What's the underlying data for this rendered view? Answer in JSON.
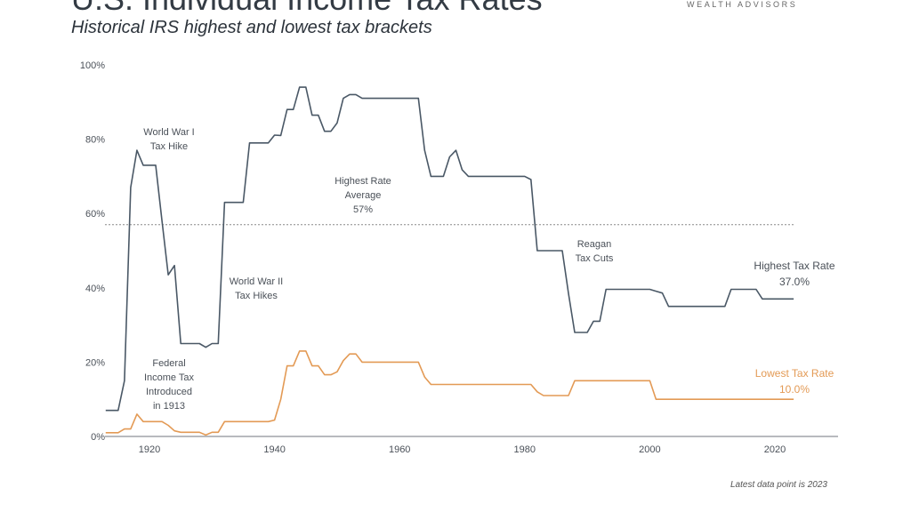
{
  "header": {
    "title": "U.S. Individual Income Tax Rates",
    "subtitle": "Historical IRS highest and lowest tax brackets",
    "logo_text": "WEALTH ADVISORS"
  },
  "footnote": "Latest data point is 2023",
  "colors": {
    "highest": "#4a5866",
    "lowest": "#e39a55",
    "axis": "#a0a4a8",
    "text": "#4a5058"
  },
  "chart_data": {
    "type": "line",
    "title": "U.S. Individual Income Tax Rates",
    "subtitle": "Historical IRS highest and lowest tax brackets",
    "xlabel": "",
    "ylabel": "",
    "xlim": [
      1913,
      2030
    ],
    "ylim": [
      0,
      100
    ],
    "x_ticks": [
      "1920",
      "1940",
      "1960",
      "1980",
      "2000",
      "2020"
    ],
    "y_ticks": [
      "0%",
      "20%",
      "40%",
      "60%",
      "80%",
      "100%"
    ],
    "grid": false,
    "series": [
      {
        "name": "Highest Tax Rate",
        "color": "#4a5866",
        "end_label": "37.0%",
        "points": [
          [
            1913,
            7
          ],
          [
            1914,
            7
          ],
          [
            1915,
            7
          ],
          [
            1916,
            15
          ],
          [
            1917,
            67
          ],
          [
            1918,
            77
          ],
          [
            1919,
            73
          ],
          [
            1920,
            73
          ],
          [
            1921,
            73
          ],
          [
            1922,
            58
          ],
          [
            1923,
            43.5
          ],
          [
            1924,
            46
          ],
          [
            1925,
            25
          ],
          [
            1926,
            25
          ],
          [
            1927,
            25
          ],
          [
            1928,
            25
          ],
          [
            1929,
            24
          ],
          [
            1930,
            25
          ],
          [
            1931,
            25
          ],
          [
            1932,
            63
          ],
          [
            1933,
            63
          ],
          [
            1934,
            63
          ],
          [
            1935,
            63
          ],
          [
            1936,
            79
          ],
          [
            1937,
            79
          ],
          [
            1938,
            79
          ],
          [
            1939,
            79
          ],
          [
            1940,
            81.1
          ],
          [
            1941,
            81
          ],
          [
            1942,
            88
          ],
          [
            1943,
            88
          ],
          [
            1944,
            94
          ],
          [
            1945,
            94
          ],
          [
            1946,
            86.45
          ],
          [
            1947,
            86.45
          ],
          [
            1948,
            82.13
          ],
          [
            1949,
            82.13
          ],
          [
            1950,
            84.36
          ],
          [
            1951,
            91
          ],
          [
            1952,
            92
          ],
          [
            1953,
            92
          ],
          [
            1954,
            91
          ],
          [
            1963,
            91
          ],
          [
            1964,
            77
          ],
          [
            1965,
            70
          ],
          [
            1967,
            70
          ],
          [
            1968,
            75.25
          ],
          [
            1969,
            77
          ],
          [
            1970,
            71.75
          ],
          [
            1971,
            70
          ],
          [
            1980,
            70
          ],
          [
            1981,
            69.13
          ],
          [
            1982,
            50
          ],
          [
            1986,
            50
          ],
          [
            1987,
            38.5
          ],
          [
            1988,
            28
          ],
          [
            1990,
            28
          ],
          [
            1991,
            31
          ],
          [
            1992,
            31
          ],
          [
            1993,
            39.6
          ],
          [
            2000,
            39.6
          ],
          [
            2001,
            39.1
          ],
          [
            2002,
            38.6
          ],
          [
            2003,
            35
          ],
          [
            2012,
            35
          ],
          [
            2013,
            39.6
          ],
          [
            2017,
            39.6
          ],
          [
            2018,
            37
          ],
          [
            2023,
            37
          ]
        ]
      },
      {
        "name": "Lowest Tax Rate",
        "color": "#e39a55",
        "end_label": "10.0%",
        "points": [
          [
            1913,
            1
          ],
          [
            1915,
            1
          ],
          [
            1916,
            2
          ],
          [
            1917,
            2
          ],
          [
            1918,
            6
          ],
          [
            1919,
            4
          ],
          [
            1922,
            4
          ],
          [
            1923,
            3
          ],
          [
            1924,
            1.5
          ],
          [
            1925,
            1.125
          ],
          [
            1928,
            1.125
          ],
          [
            1929,
            0.375
          ],
          [
            1930,
            1.125
          ],
          [
            1931,
            1.125
          ],
          [
            1932,
            4
          ],
          [
            1939,
            4
          ],
          [
            1940,
            4.4
          ],
          [
            1941,
            10
          ],
          [
            1942,
            19
          ],
          [
            1943,
            19
          ],
          [
            1944,
            23
          ],
          [
            1945,
            23
          ],
          [
            1946,
            19
          ],
          [
            1947,
            19
          ],
          [
            1948,
            16.6
          ],
          [
            1949,
            16.6
          ],
          [
            1950,
            17.4
          ],
          [
            1951,
            20.4
          ],
          [
            1952,
            22.2
          ],
          [
            1953,
            22.2
          ],
          [
            1954,
            20
          ],
          [
            1963,
            20
          ],
          [
            1964,
            16
          ],
          [
            1965,
            14
          ],
          [
            1981,
            14
          ],
          [
            1982,
            12
          ],
          [
            1983,
            11
          ],
          [
            1987,
            11
          ],
          [
            1988,
            15
          ],
          [
            2000,
            15
          ],
          [
            2001,
            10
          ],
          [
            2023,
            10
          ]
        ]
      }
    ],
    "reference_line": {
      "value": 57,
      "label": [
        "Highest Rate",
        "Average",
        "57%"
      ],
      "style": "dotted"
    },
    "annotations": [
      {
        "lines": [
          "World War I",
          "Tax Hike"
        ]
      },
      {
        "lines": [
          "World War II",
          "Tax Hikes"
        ]
      },
      {
        "lines": [
          "Federal",
          "Income Tax",
          "Introduced",
          "in 1913"
        ]
      },
      {
        "lines": [
          "Reagan",
          "Tax Cuts"
        ]
      }
    ]
  }
}
